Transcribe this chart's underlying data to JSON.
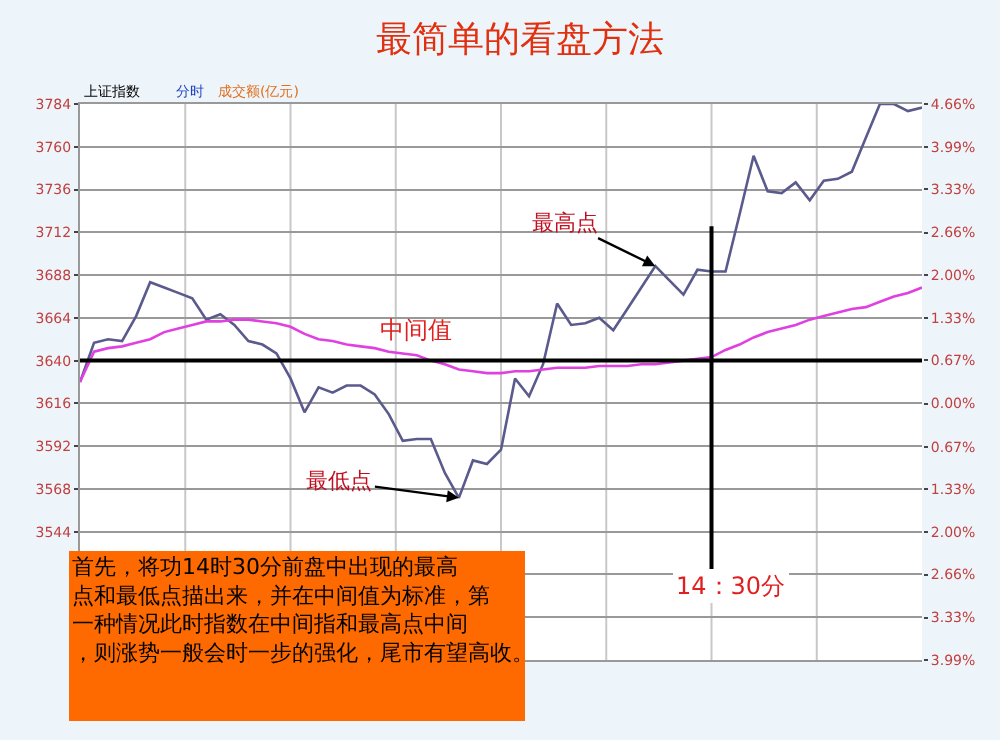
{
  "chart_data": {
    "type": "line",
    "title": "最简单的看盘方法",
    "categories": [
      null,
      null,
      null,
      null,
      null,
      null,
      null,
      null,
      null,
      null,
      null,
      null,
      null,
      null,
      null,
      null,
      null,
      null,
      null,
      null,
      null,
      null,
      null,
      null,
      null,
      null,
      null,
      null,
      null,
      null,
      null,
      null,
      null,
      null,
      null,
      null,
      null,
      null,
      null,
      null,
      null,
      null,
      null,
      null,
      null,
      null,
      null,
      null,
      null,
      null,
      null,
      null,
      null,
      null,
      null,
      null,
      null,
      null,
      null,
      null,
      null
    ],
    "series": [
      {
        "color": "#5a5a8c",
        "values": [
          3628,
          3650,
          3652,
          3651,
          3665,
          3684,
          3681,
          3678,
          3675,
          3663,
          3666,
          3660,
          3651,
          3649,
          3644,
          3630,
          3611,
          3625,
          3622,
          3626,
          3626,
          3621,
          3610,
          3595,
          3596,
          3596,
          3577,
          3563,
          3584,
          3582,
          3590,
          3630,
          3620,
          3638,
          3672,
          3660,
          3661,
          3664,
          3657,
          3669,
          3681,
          3693,
          3685,
          3677,
          3691,
          3690,
          3690,
          3722,
          3755,
          3735,
          3734,
          3740,
          3730,
          3741,
          3742,
          3746,
          3765,
          3784,
          3784,
          3780,
          3782
        ]
      },
      {
        "color": "#e040e0",
        "values": [
          3628,
          3645,
          3647,
          3648,
          3650,
          3652,
          3656,
          3658,
          3660,
          3662,
          3662,
          3663,
          3663,
          3662,
          3661,
          3659,
          3655,
          3652,
          3651,
          3649,
          3648,
          3647,
          3645,
          3644,
          3643,
          3640,
          3638,
          3635,
          3634,
          3633,
          3633,
          3634,
          3634,
          3635,
          3636,
          3636,
          3636,
          3637,
          3637,
          3637,
          3638,
          3638,
          3639,
          3640,
          3641,
          3642,
          3646,
          3649,
          3653,
          3656,
          3658,
          3660,
          3663,
          3665,
          3667,
          3669,
          3670,
          3673,
          3676,
          3678,
          3681
        ]
      }
    ],
    "ylim": [
      3472,
      3784
    ],
    "yticks": [
      {
        "value": 3472,
        "label": null
      },
      {
        "value": 3496,
        "label": null
      },
      {
        "value": 3520,
        "label": null
      },
      3544,
      3568,
      3592,
      3616,
      3640,
      3664,
      3688,
      3712,
      3736,
      3760,
      3784
    ],
    "y2lim": [
      -3.99,
      4.66
    ],
    "y2ticks": [
      {
        "value": -3.99,
        "label": "3.99%"
      },
      {
        "value": -3.33,
        "label": "3.33%"
      },
      {
        "value": -2.66,
        "label": "2.66%"
      },
      {
        "value": -2.0,
        "label": "2.00%"
      },
      {
        "value": -1.33,
        "label": "1.33%"
      },
      {
        "value": -0.67,
        "label": "0.67%"
      },
      {
        "value": 0,
        "label": "0.00%"
      },
      {
        "value": 0.67,
        "label": "0.67%"
      },
      {
        "value": 1.33,
        "label": "1.33%"
      },
      {
        "value": 2.0,
        "label": "2.00%"
      },
      {
        "value": 2.66,
        "label": "2.66%"
      },
      {
        "value": 3.33,
        "label": "3.33%"
      },
      {
        "value": 3.99,
        "label": "3.99%"
      },
      {
        "value": 4.66,
        "label": "4.66%"
      }
    ],
    "tick_labels": "y",
    "grid": true,
    "marker": "none",
    "line_style": "solid",
    "ref_lines": [
      {
        "axis": "y",
        "value": 3640,
        "label": "中间值",
        "color": "#000000"
      }
    ],
    "annotations": [
      "上证指数",
      "分时",
      "成交额(亿元)",
      "最高点",
      "最低点",
      "首先，将功14时30分前盘中出现的最高点和最低点描出来，并在中间值为标准，第一种情况此时指数在中间指和最高点中间，则涨势一般会时一步的强化，尾市有望高收。",
      "14：30分"
    ]
  }
}
